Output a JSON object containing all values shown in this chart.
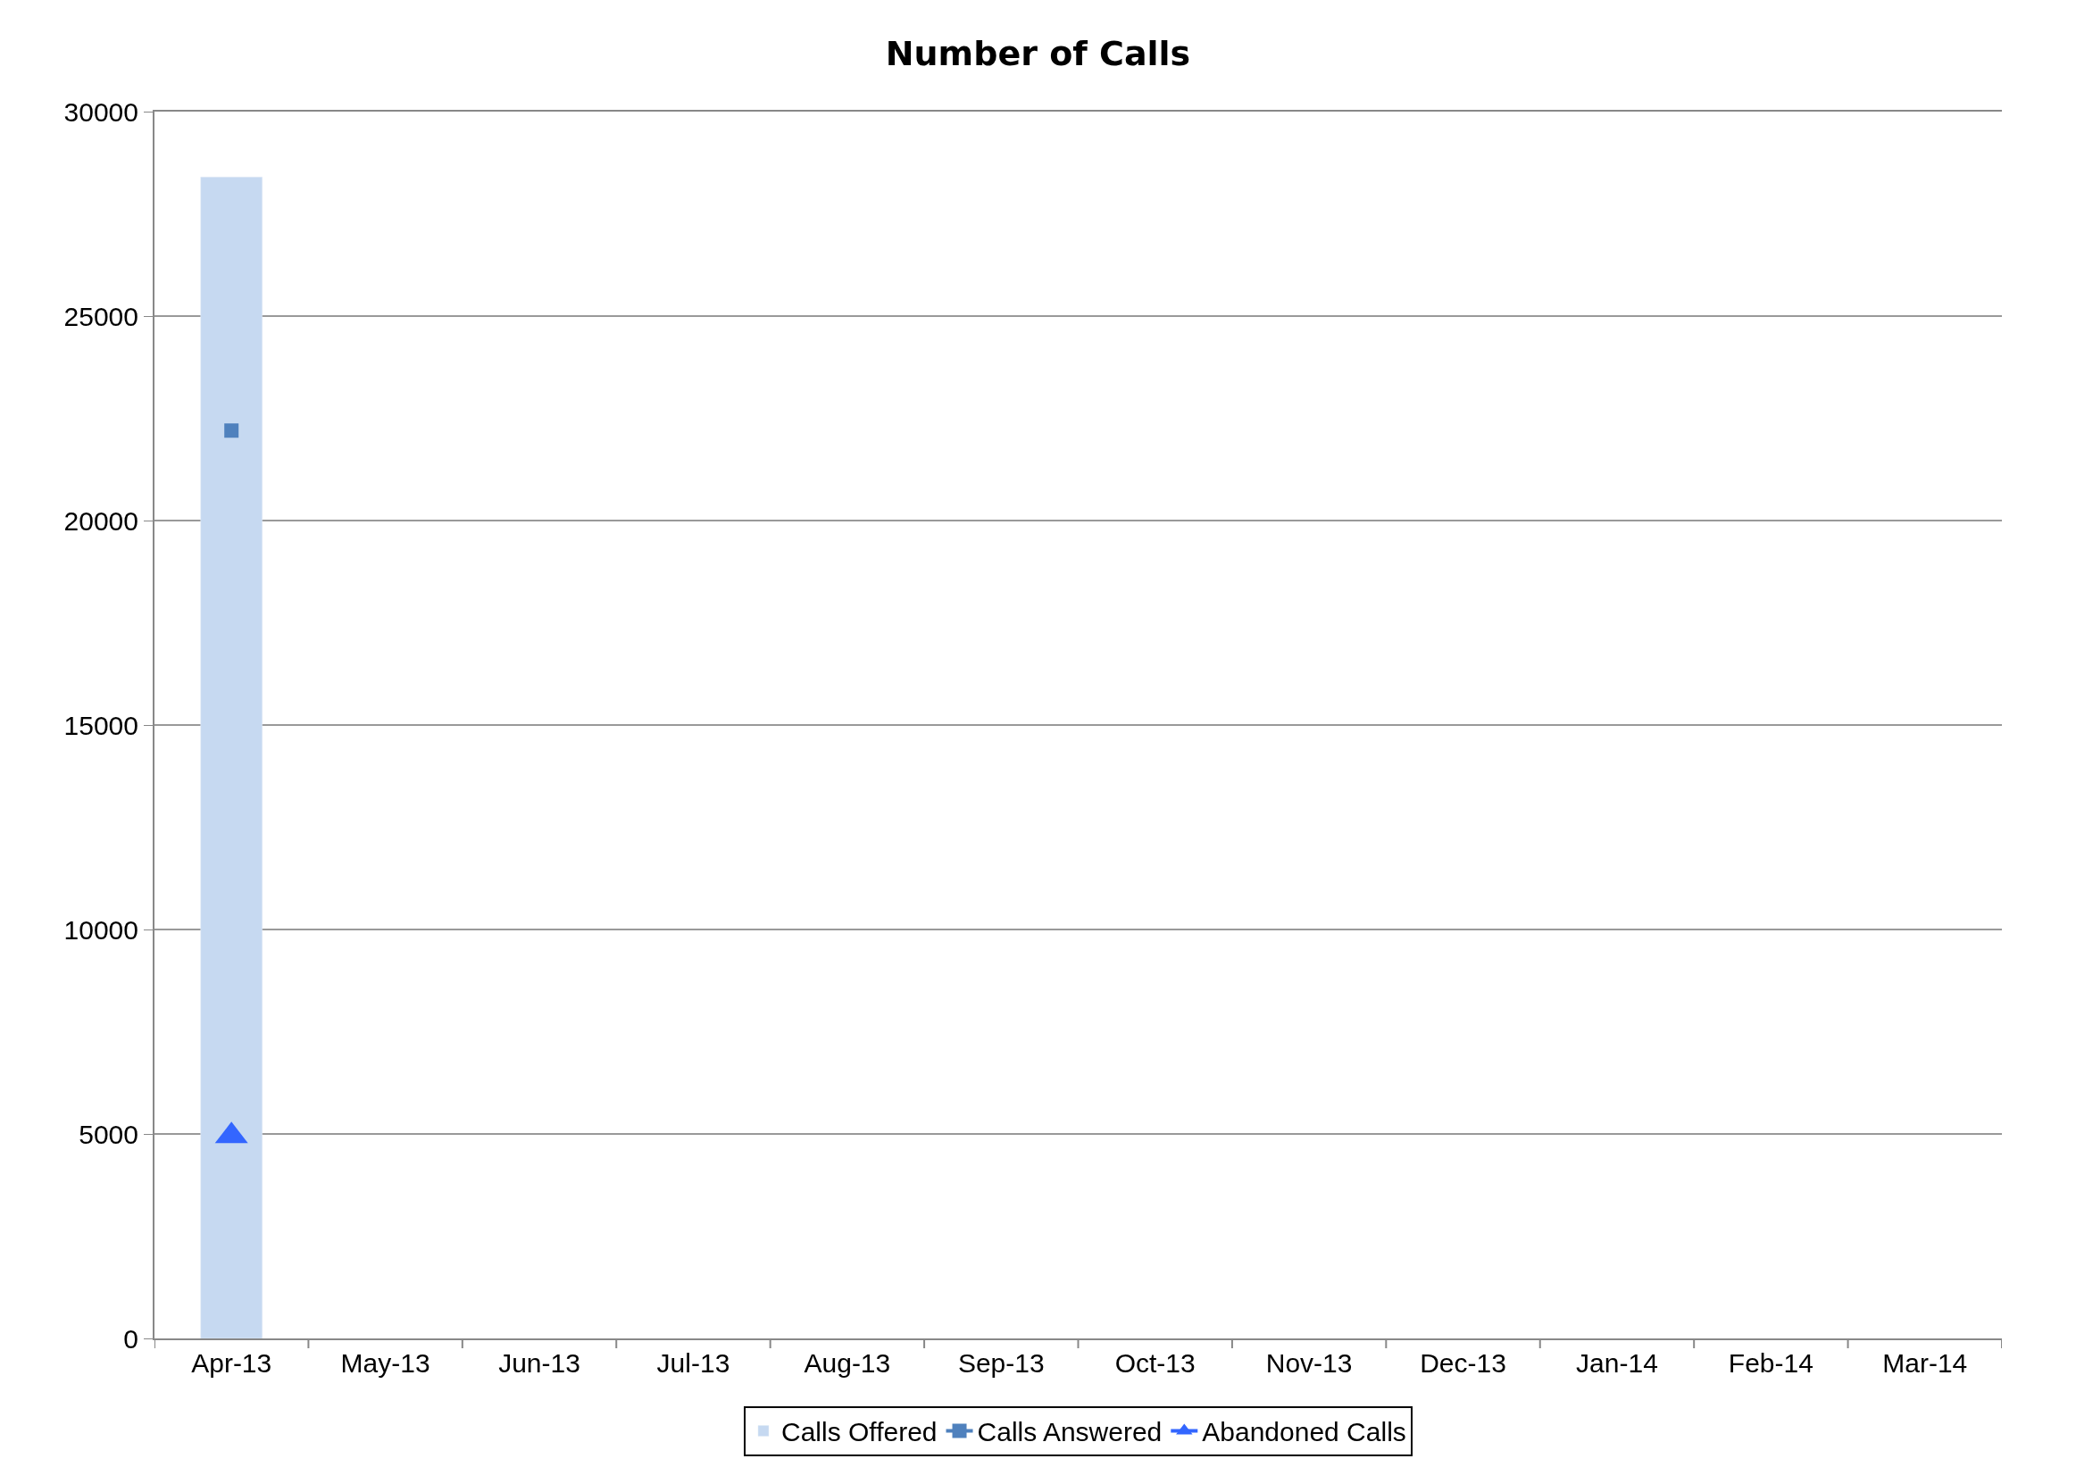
{
  "chart_data": {
    "type": "bar",
    "title": "Number of Calls",
    "categories": [
      "Apr-13",
      "May-13",
      "Jun-13",
      "Jul-13",
      "Aug-13",
      "Sep-13",
      "Oct-13",
      "Nov-13",
      "Dec-13",
      "Jan-14",
      "Feb-14",
      "Mar-14"
    ],
    "series": [
      {
        "name": "Calls Offered",
        "color": "#c6d9f1",
        "values": [
          28400,
          null,
          null,
          null,
          null,
          null,
          null,
          null,
          null,
          null,
          null,
          null
        ]
      },
      {
        "name": "Calls Answered",
        "type": "line",
        "marker": "square",
        "color": "#4f81bd",
        "values": [
          22200,
          null,
          null,
          null,
          null,
          null,
          null,
          null,
          null,
          null,
          null,
          null
        ]
      },
      {
        "name": "Abandoned Calls",
        "type": "line",
        "marker": "triangle",
        "color": "#3366ff",
        "values": [
          4950,
          null,
          null,
          null,
          null,
          null,
          null,
          null,
          null,
          null,
          null,
          null
        ]
      }
    ],
    "ylim": [
      0,
      30000
    ],
    "yticks": [
      0,
      5000,
      10000,
      15000,
      20000,
      25000,
      30000
    ],
    "grid": "y",
    "legend": "bottom"
  }
}
